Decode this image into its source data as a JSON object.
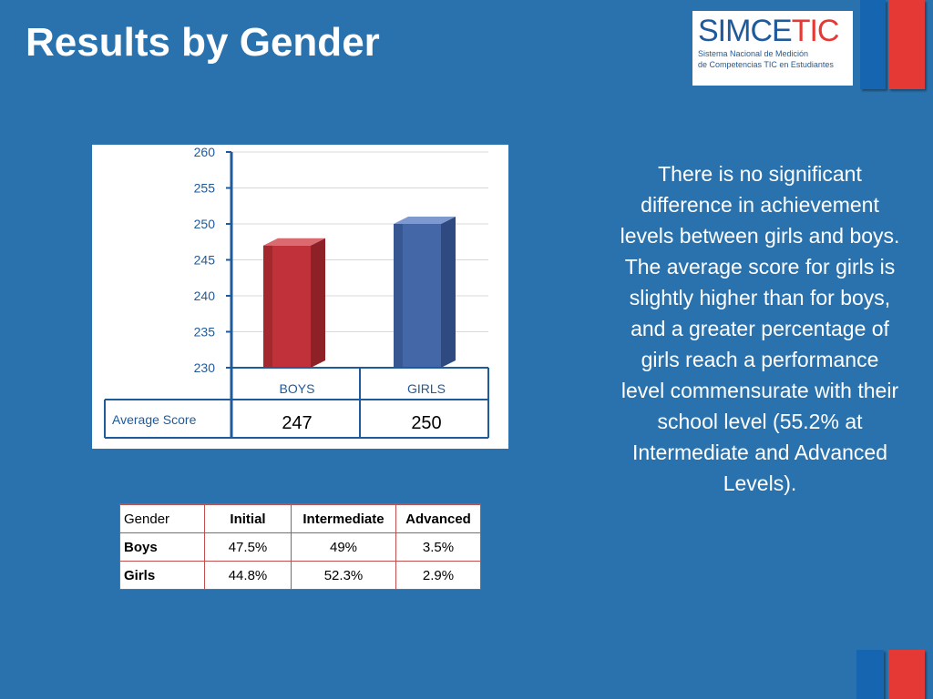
{
  "slide": {
    "title": "Results by Gender",
    "description": "There is no significant difference in achievement levels between girls and boys. The average score for girls is slightly higher than for boys, and a greater percentage of girls reach a performance level commensurate with their school level (55.2% at Intermediate and Advanced Levels)."
  },
  "logo": {
    "brand_part1": "SIMCE",
    "brand_part2": "TIC",
    "tagline_line1": "Sistema Nacional de Medición",
    "tagline_line2": "de Competencias TIC en Estudiantes"
  },
  "colors": {
    "background": "#2a72ad",
    "boys_bar": "#c0313a",
    "girls_bar": "#4467a8",
    "axis": "#1f5a9a",
    "stripe_blue": "#1565b0",
    "stripe_red": "#e53935",
    "table_border": "#c0504d"
  },
  "chart_data": {
    "type": "bar",
    "categories": [
      "BOYS",
      "GIRLS"
    ],
    "values": [
      247,
      250
    ],
    "ylim": [
      230,
      260
    ],
    "yticks": [
      "260",
      "255",
      "250",
      "245",
      "240",
      "235",
      "230"
    ],
    "row_label": "Average Score",
    "value_labels": [
      "247",
      "250"
    ],
    "grid": true
  },
  "table": {
    "headers": [
      "Gender",
      "Initial",
      "Intermediate",
      "Advanced"
    ],
    "rows": [
      [
        "Boys",
        "47.5%",
        "49%",
        "3.5%"
      ],
      [
        "Girls",
        "44.8%",
        "52.3%",
        "2.9%"
      ]
    ]
  }
}
